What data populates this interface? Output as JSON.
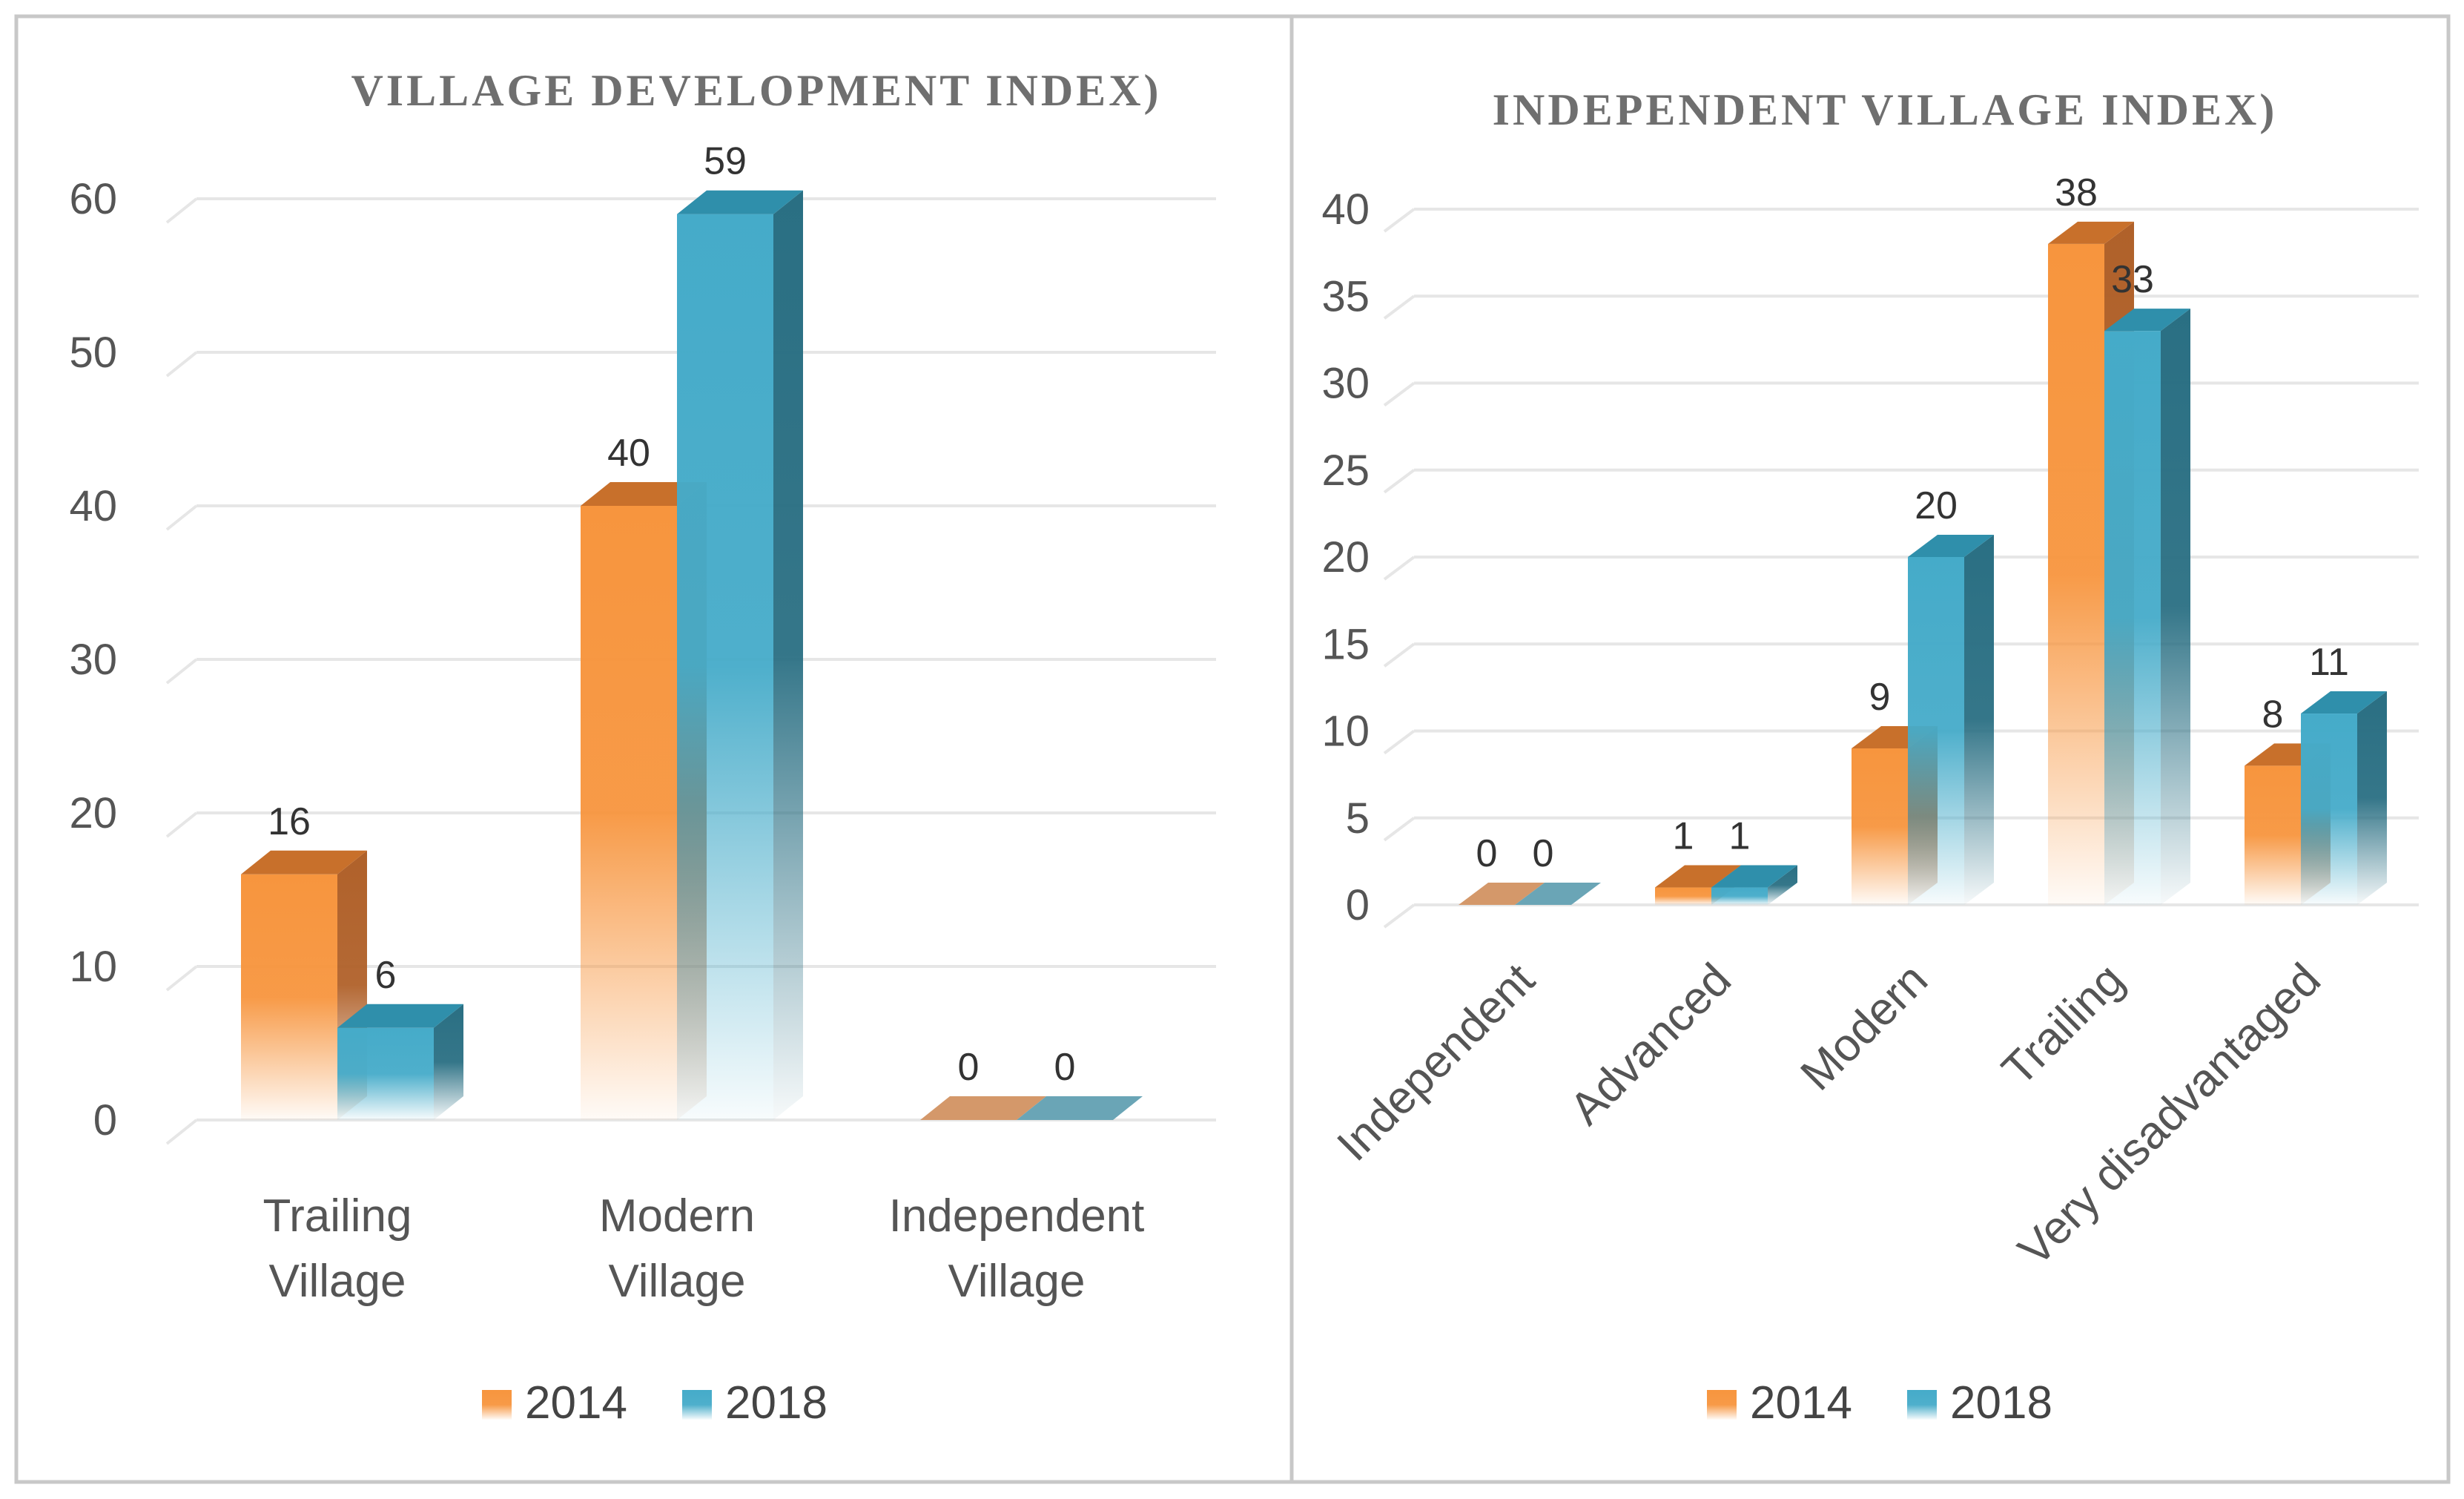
{
  "colors": {
    "series_2014": "#f7953e",
    "series_2014_top": "#c8702b",
    "series_2014_side": "#b0612a",
    "series_2018": "#45abc9",
    "series_2018_top": "#2f8fab",
    "series_2018_side": "#2a6f83",
    "zero_2014": "#d4986a",
    "zero_2018": "#6aa5b6",
    "border": "#c8c8c8",
    "grid": "#e6e6e6"
  },
  "chart_data": [
    {
      "type": "bar",
      "title": "VILLAGE DEVELOPMENT INDEX)",
      "categories": [
        "Trailing Village",
        "Modern Village",
        "Independent Village"
      ],
      "category_lines": [
        [
          "Trailing",
          "Village"
        ],
        [
          "Modern",
          "Village"
        ],
        [
          "Independent",
          "Village"
        ]
      ],
      "series": [
        {
          "name": "2014",
          "values": [
            16,
            40,
            0
          ]
        },
        {
          "name": "2018",
          "values": [
            6,
            59,
            0
          ]
        }
      ],
      "ylim": [
        0,
        60
      ],
      "yticks": [
        0,
        10,
        20,
        30,
        40,
        50,
        60
      ],
      "grid": true,
      "legend": "bottom",
      "xlabel": "",
      "ylabel": ""
    },
    {
      "type": "bar",
      "title": "INDEPENDENT VILLAGE INDEX)",
      "categories": [
        "Independent",
        "Advanced",
        "Modern",
        "Trailing",
        "Very disadvantaged"
      ],
      "series": [
        {
          "name": "2014",
          "values": [
            0,
            1,
            9,
            38,
            8
          ]
        },
        {
          "name": "2018",
          "values": [
            0,
            1,
            20,
            33,
            11
          ]
        }
      ],
      "ylim": [
        0,
        40
      ],
      "yticks": [
        0,
        5,
        10,
        15,
        20,
        25,
        30,
        35,
        40
      ],
      "grid": true,
      "legend": "bottom",
      "xlabel": "",
      "ylabel": ""
    }
  ]
}
